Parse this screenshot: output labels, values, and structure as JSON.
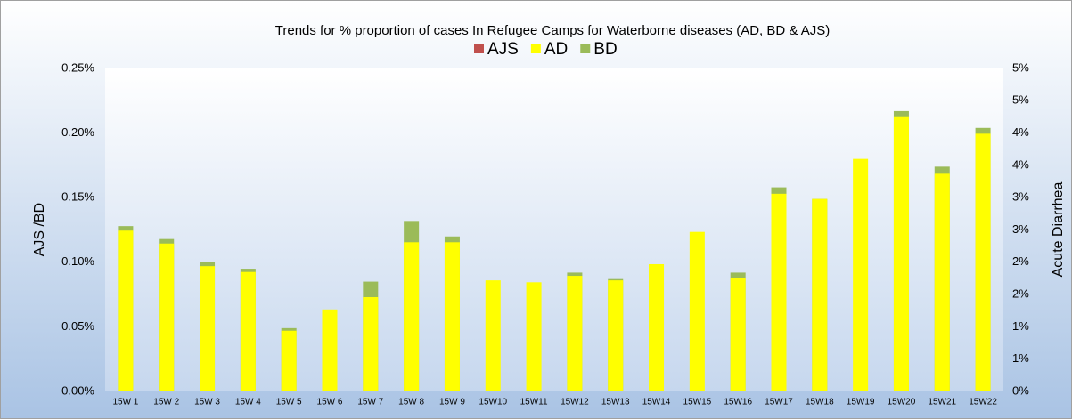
{
  "chart_data": {
    "type": "bar",
    "title": "Trends for % proportion of cases In Refugee Camps for Waterborne diseases (AD, BD & AJS)",
    "ylabel": "AJS /BD",
    "y2label": "Acute Diarrhea",
    "categories": [
      "15W 1",
      "15W 2",
      "15W 3",
      "15W 4",
      "15W 5",
      "15W 6",
      "15W 7",
      "15W 8",
      "15W 9",
      "15W10",
      "15W11",
      "15W12",
      "15W13",
      "15W14",
      "15W15",
      "15W16",
      "15W17",
      "15W18",
      "15W19",
      "15W20",
      "15W21",
      "15W22"
    ],
    "series": [
      {
        "name": "AJS",
        "color": "#c0504d"
      },
      {
        "name": "AD",
        "color": "#ffff00",
        "axis": "y2",
        "values": [
          2.49,
          2.29,
          1.94,
          1.85,
          0.94,
          1.27,
          1.46,
          2.31,
          2.31,
          1.72,
          1.69,
          1.79,
          1.72,
          1.97,
          2.47,
          1.75,
          3.06,
          2.98,
          3.6,
          4.26,
          3.37,
          3.99
        ]
      },
      {
        "name": "BD",
        "color": "#9bbb59",
        "values": [
          0.128,
          0.118,
          0.1,
          0.095,
          0.049,
          null,
          0.085,
          0.132,
          0.12,
          null,
          null,
          0.092,
          0.087,
          null,
          null,
          0.092,
          0.158,
          0.149,
          null,
          0.217,
          0.174,
          0.204
        ]
      }
    ],
    "ylim": [
      0,
      0.25
    ],
    "yticks": [
      {
        "value": 0,
        "label": "0.00%"
      },
      {
        "value": 0.05,
        "label": "0.05%"
      },
      {
        "value": 0.1,
        "label": "0.10%"
      },
      {
        "value": 0.15,
        "label": "0.15%"
      },
      {
        "value": 0.2,
        "label": "0.20%"
      },
      {
        "value": 0.25,
        "label": "0.25%"
      }
    ],
    "y2lim": [
      0,
      5
    ],
    "y2ticks": [
      {
        "value": 0,
        "label": "0%"
      },
      {
        "value": 0.5,
        "label": "1%"
      },
      {
        "value": 1,
        "label": "1%"
      },
      {
        "value": 1.5,
        "label": "2%"
      },
      {
        "value": 2,
        "label": "2%"
      },
      {
        "value": 2.5,
        "label": "3%"
      },
      {
        "value": 3,
        "label": "3%"
      },
      {
        "value": 3.5,
        "label": "4%"
      },
      {
        "value": 4,
        "label": "4%"
      },
      {
        "value": 4.5,
        "label": "5%"
      },
      {
        "value": 5,
        "label": "5%"
      }
    ],
    "legend": "top"
  }
}
